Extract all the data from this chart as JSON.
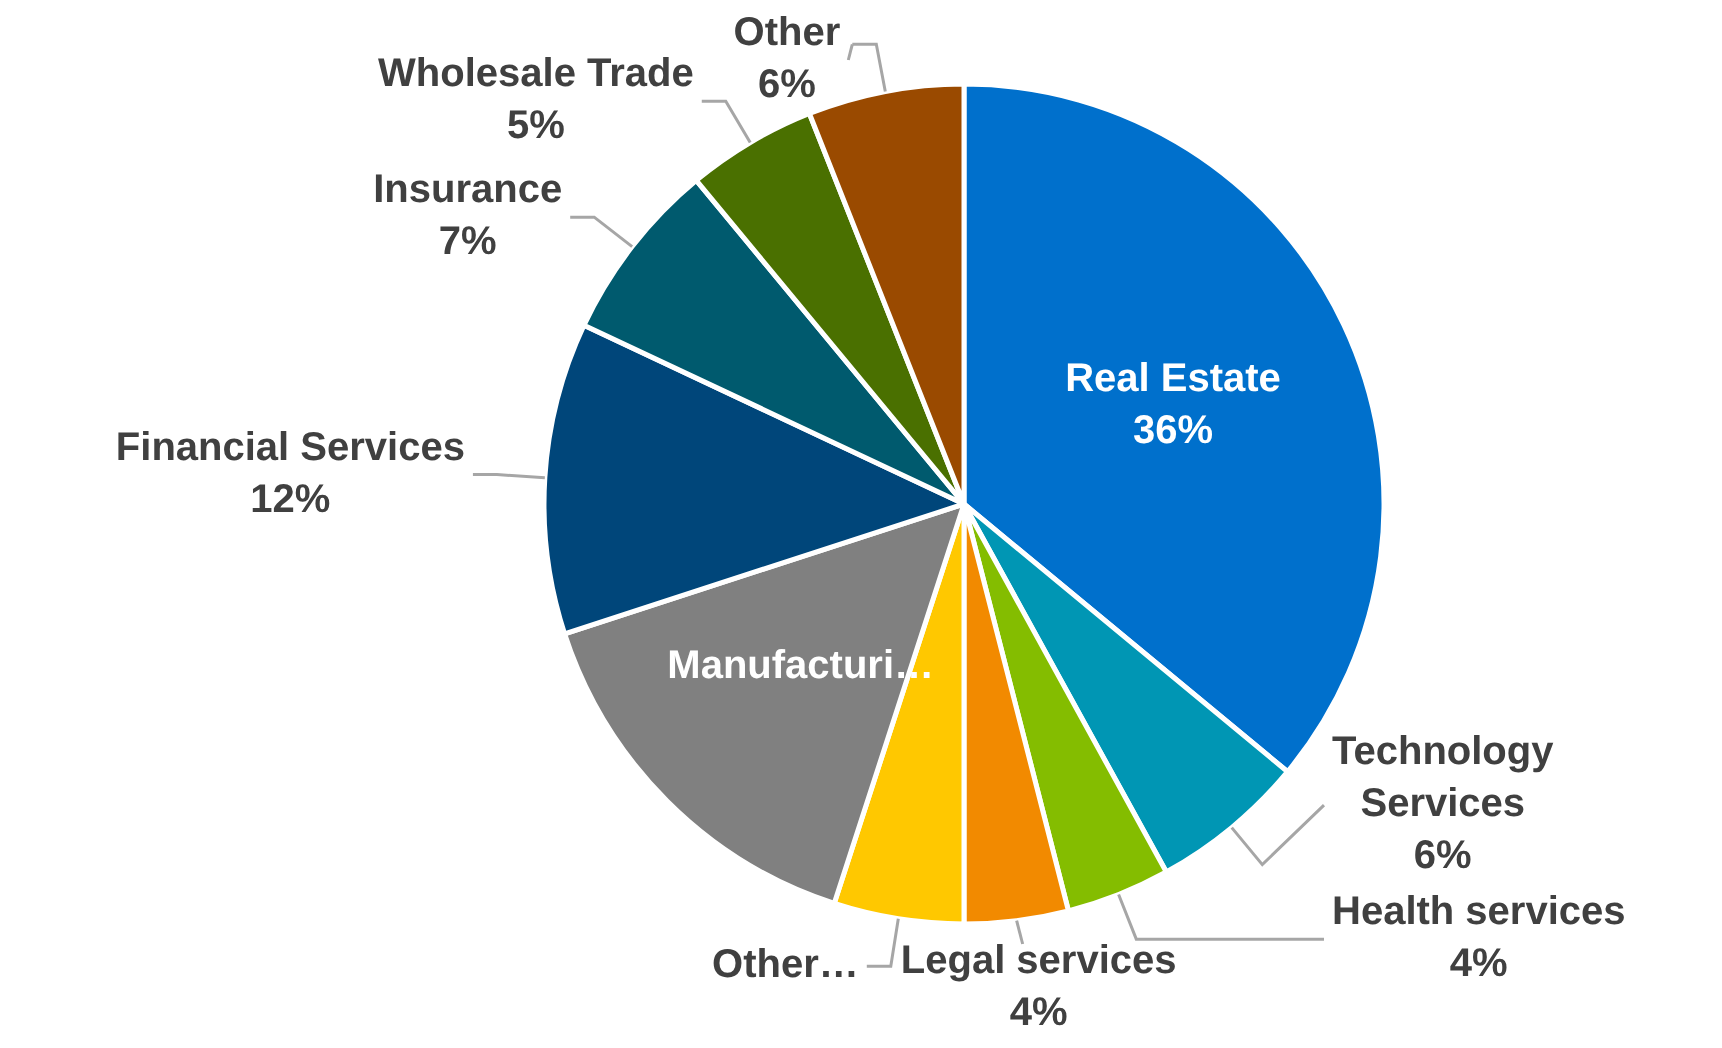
{
  "chart_data": {
    "type": "pie",
    "categories": [
      "Real Estate",
      "Technology Services",
      "Health services",
      "Legal services",
      "Other…",
      "Manufacturi…",
      "Financial Services",
      "Insurance",
      "Wholesale Trade",
      "Other"
    ],
    "values": [
      36,
      6,
      4,
      4,
      5,
      15,
      12,
      7,
      5,
      6
    ],
    "value_labels": [
      "36%",
      "6%",
      "4%",
      "4%",
      null,
      null,
      "12%",
      "7%",
      "5%",
      "6%"
    ],
    "colors": [
      "#0070cc",
      "#0096b4",
      "#84bd00",
      "#f28a00",
      "#ffc800",
      "#808080",
      "#00467a",
      "#005a6e",
      "#4a7000",
      "#9a4a00"
    ],
    "legend": false
  }
}
